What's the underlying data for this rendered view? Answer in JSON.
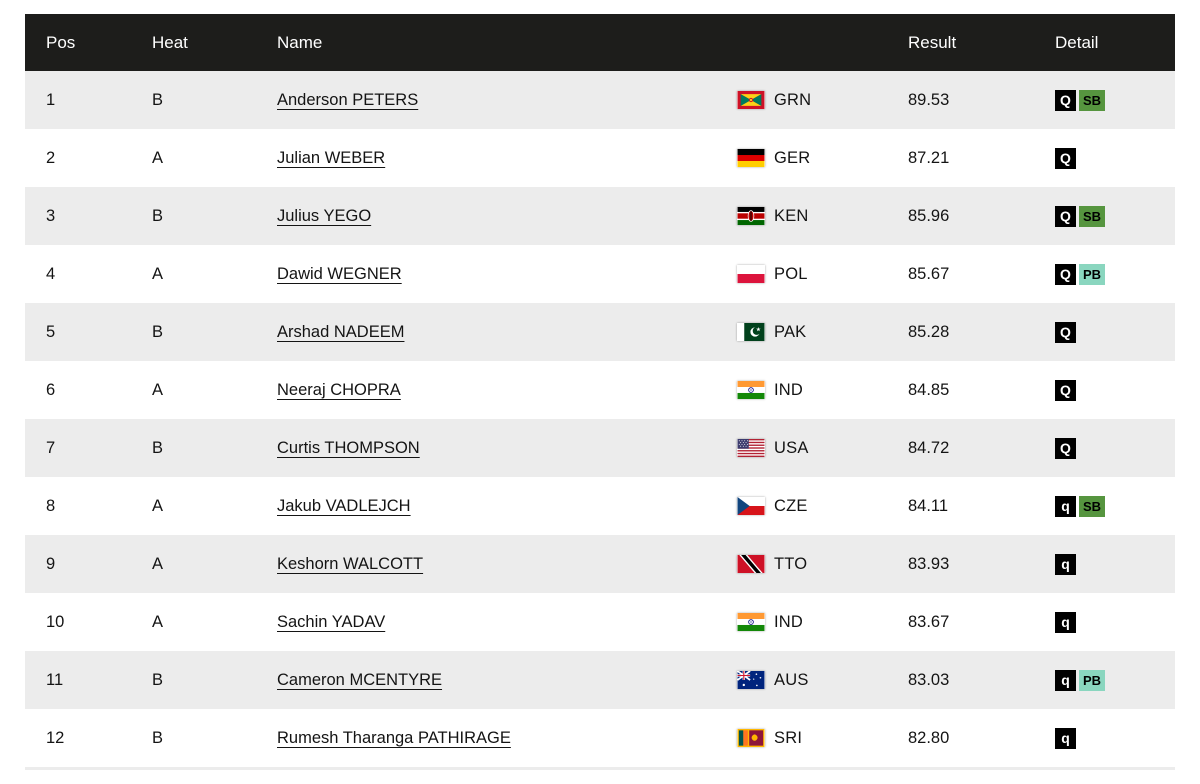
{
  "colors": {
    "header_bg": "#1d1d1b",
    "header_text": "#ffffff",
    "row_alt_bg": "#ececec",
    "badge_main_bg": "#000000",
    "badge_main_text": "#ffffff",
    "badge_sb_bg": "#56953f",
    "badge_pb_bg": "#8ad6bf",
    "badge_note_text": "#000000"
  },
  "table": {
    "columns": {
      "pos": "Pos",
      "heat": "Heat",
      "name": "Name",
      "result": "Result",
      "detail": "Detail"
    },
    "rows": [
      {
        "pos": "1",
        "heat": "B",
        "name": "Anderson PETERS",
        "country": "GRN",
        "result": "89.53",
        "detail": [
          {
            "label": "Q",
            "kind": "main"
          },
          {
            "label": "SB",
            "kind": "sb"
          }
        ]
      },
      {
        "pos": "2",
        "heat": "A",
        "name": "Julian WEBER",
        "country": "GER",
        "result": "87.21",
        "detail": [
          {
            "label": "Q",
            "kind": "main"
          }
        ]
      },
      {
        "pos": "3",
        "heat": "B",
        "name": "Julius YEGO",
        "country": "KEN",
        "result": "85.96",
        "detail": [
          {
            "label": "Q",
            "kind": "main"
          },
          {
            "label": "SB",
            "kind": "sb"
          }
        ]
      },
      {
        "pos": "4",
        "heat": "A",
        "name": "Dawid WEGNER",
        "country": "POL",
        "result": "85.67",
        "detail": [
          {
            "label": "Q",
            "kind": "main"
          },
          {
            "label": "PB",
            "kind": "pb"
          }
        ]
      },
      {
        "pos": "5",
        "heat": "B",
        "name": "Arshad NADEEM",
        "country": "PAK",
        "result": "85.28",
        "detail": [
          {
            "label": "Q",
            "kind": "main"
          }
        ]
      },
      {
        "pos": "6",
        "heat": "A",
        "name": "Neeraj CHOPRA",
        "country": "IND",
        "result": "84.85",
        "detail": [
          {
            "label": "Q",
            "kind": "main"
          }
        ]
      },
      {
        "pos": "7",
        "heat": "B",
        "name": "Curtis THOMPSON",
        "country": "USA",
        "result": "84.72",
        "detail": [
          {
            "label": "Q",
            "kind": "main"
          }
        ]
      },
      {
        "pos": "8",
        "heat": "A",
        "name": "Jakub VADLEJCH",
        "country": "CZE",
        "result": "84.11",
        "detail": [
          {
            "label": "q",
            "kind": "main"
          },
          {
            "label": "SB",
            "kind": "sb"
          }
        ]
      },
      {
        "pos": "9",
        "heat": "A",
        "name": "Keshorn WALCOTT",
        "country": "TTO",
        "result": "83.93",
        "detail": [
          {
            "label": "q",
            "kind": "main"
          }
        ]
      },
      {
        "pos": "10",
        "heat": "A",
        "name": "Sachin YADAV",
        "country": "IND",
        "result": "83.67",
        "detail": [
          {
            "label": "q",
            "kind": "main"
          }
        ]
      },
      {
        "pos": "11",
        "heat": "B",
        "name": "Cameron MCENTYRE",
        "country": "AUS",
        "result": "83.03",
        "detail": [
          {
            "label": "q",
            "kind": "main"
          },
          {
            "label": "PB",
            "kind": "pb"
          }
        ]
      },
      {
        "pos": "12",
        "heat": "B",
        "name": "Rumesh Tharanga PATHIRAGE",
        "country": "SRI",
        "result": "82.80",
        "detail": [
          {
            "label": "q",
            "kind": "main"
          }
        ]
      }
    ]
  }
}
